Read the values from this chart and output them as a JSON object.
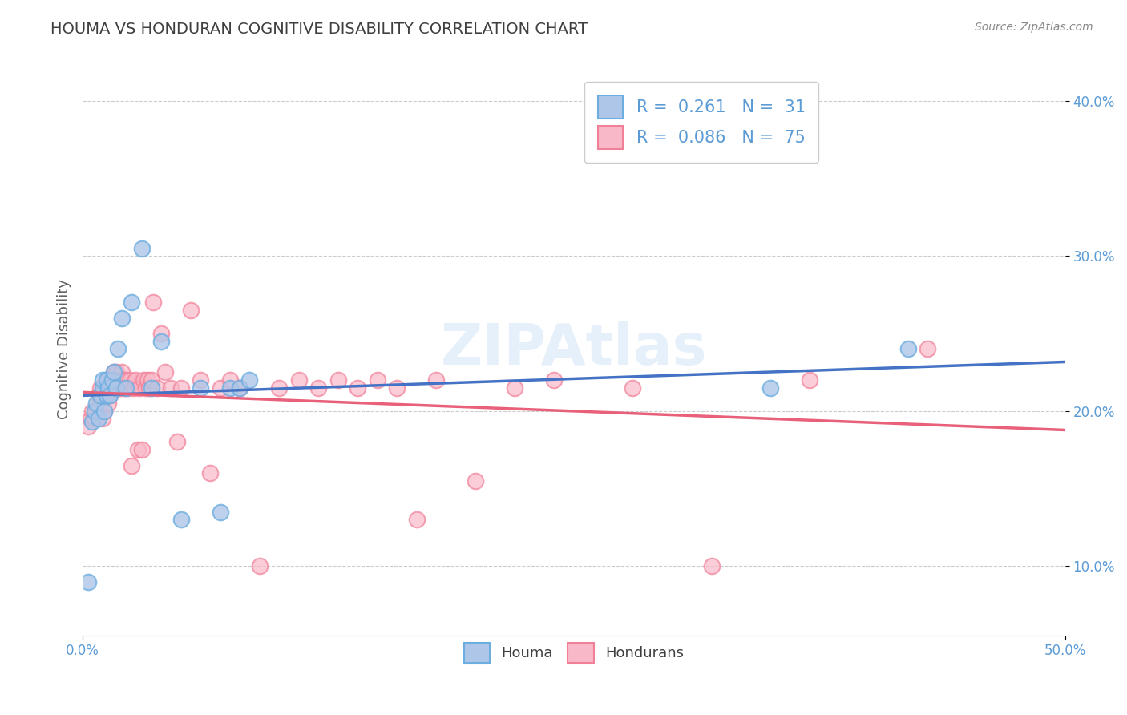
{
  "title": "HOUMA VS HONDURAN COGNITIVE DISABILITY CORRELATION CHART",
  "source": "Source: ZipAtlas.com",
  "ylabel": "Cognitive Disability",
  "x_min": 0.0,
  "x_max": 0.5,
  "y_min": 0.055,
  "y_max": 0.425,
  "y_ticks": [
    0.1,
    0.2,
    0.3,
    0.4
  ],
  "y_tick_labels": [
    "10.0%",
    "20.0%",
    "30.0%",
    "40.0%"
  ],
  "houma_color": "#aec6e8",
  "honduran_color": "#f9b8c8",
  "houma_edge_color": "#6daee0",
  "honduran_edge_color": "#f08098",
  "houma_line_color": "#4472c4",
  "honduran_line_color": "#e8607a",
  "R_houma": 0.261,
  "N_houma": 31,
  "R_honduran": 0.086,
  "N_honduran": 75,
  "houma_x": [
    0.003,
    0.005,
    0.006,
    0.007,
    0.008,
    0.009,
    0.01,
    0.01,
    0.011,
    0.012,
    0.012,
    0.013,
    0.014,
    0.015,
    0.016,
    0.017,
    0.018,
    0.02,
    0.022,
    0.025,
    0.03,
    0.035,
    0.04,
    0.05,
    0.06,
    0.07,
    0.075,
    0.08,
    0.085,
    0.35,
    0.42
  ],
  "houma_y": [
    0.09,
    0.193,
    0.2,
    0.205,
    0.195,
    0.21,
    0.215,
    0.22,
    0.2,
    0.21,
    0.22,
    0.215,
    0.21,
    0.22,
    0.225,
    0.215,
    0.24,
    0.26,
    0.215,
    0.27,
    0.305,
    0.215,
    0.245,
    0.13,
    0.215,
    0.135,
    0.215,
    0.215,
    0.22,
    0.215,
    0.24
  ],
  "honduran_x": [
    0.003,
    0.004,
    0.005,
    0.006,
    0.007,
    0.008,
    0.009,
    0.009,
    0.01,
    0.01,
    0.011,
    0.011,
    0.012,
    0.012,
    0.013,
    0.013,
    0.014,
    0.014,
    0.015,
    0.015,
    0.016,
    0.016,
    0.017,
    0.017,
    0.018,
    0.018,
    0.019,
    0.019,
    0.02,
    0.02,
    0.021,
    0.022,
    0.023,
    0.024,
    0.025,
    0.026,
    0.027,
    0.028,
    0.029,
    0.03,
    0.031,
    0.032,
    0.033,
    0.034,
    0.035,
    0.036,
    0.038,
    0.04,
    0.042,
    0.045,
    0.048,
    0.05,
    0.055,
    0.06,
    0.065,
    0.07,
    0.075,
    0.08,
    0.09,
    0.1,
    0.11,
    0.12,
    0.13,
    0.14,
    0.15,
    0.16,
    0.17,
    0.18,
    0.2,
    0.22,
    0.24,
    0.28,
    0.32,
    0.37,
    0.43
  ],
  "honduran_y": [
    0.19,
    0.195,
    0.2,
    0.195,
    0.2,
    0.21,
    0.205,
    0.215,
    0.195,
    0.21,
    0.2,
    0.215,
    0.21,
    0.22,
    0.205,
    0.215,
    0.21,
    0.22,
    0.215,
    0.22,
    0.225,
    0.22,
    0.215,
    0.225,
    0.22,
    0.215,
    0.22,
    0.215,
    0.225,
    0.22,
    0.215,
    0.22,
    0.215,
    0.22,
    0.165,
    0.215,
    0.22,
    0.175,
    0.215,
    0.175,
    0.22,
    0.215,
    0.22,
    0.215,
    0.22,
    0.27,
    0.215,
    0.25,
    0.225,
    0.215,
    0.18,
    0.215,
    0.265,
    0.22,
    0.16,
    0.215,
    0.22,
    0.215,
    0.1,
    0.215,
    0.22,
    0.215,
    0.22,
    0.215,
    0.22,
    0.215,
    0.13,
    0.22,
    0.155,
    0.215,
    0.22,
    0.215,
    0.1,
    0.22,
    0.24
  ],
  "watermark": "ZIPAtlas",
  "background_color": "#ffffff",
  "grid_color": "#cccccc",
  "title_color": "#3f3f3f",
  "title_fontsize": 14,
  "axis_label_color": "#606060",
  "tick_label_color": "#5b9bd5"
}
